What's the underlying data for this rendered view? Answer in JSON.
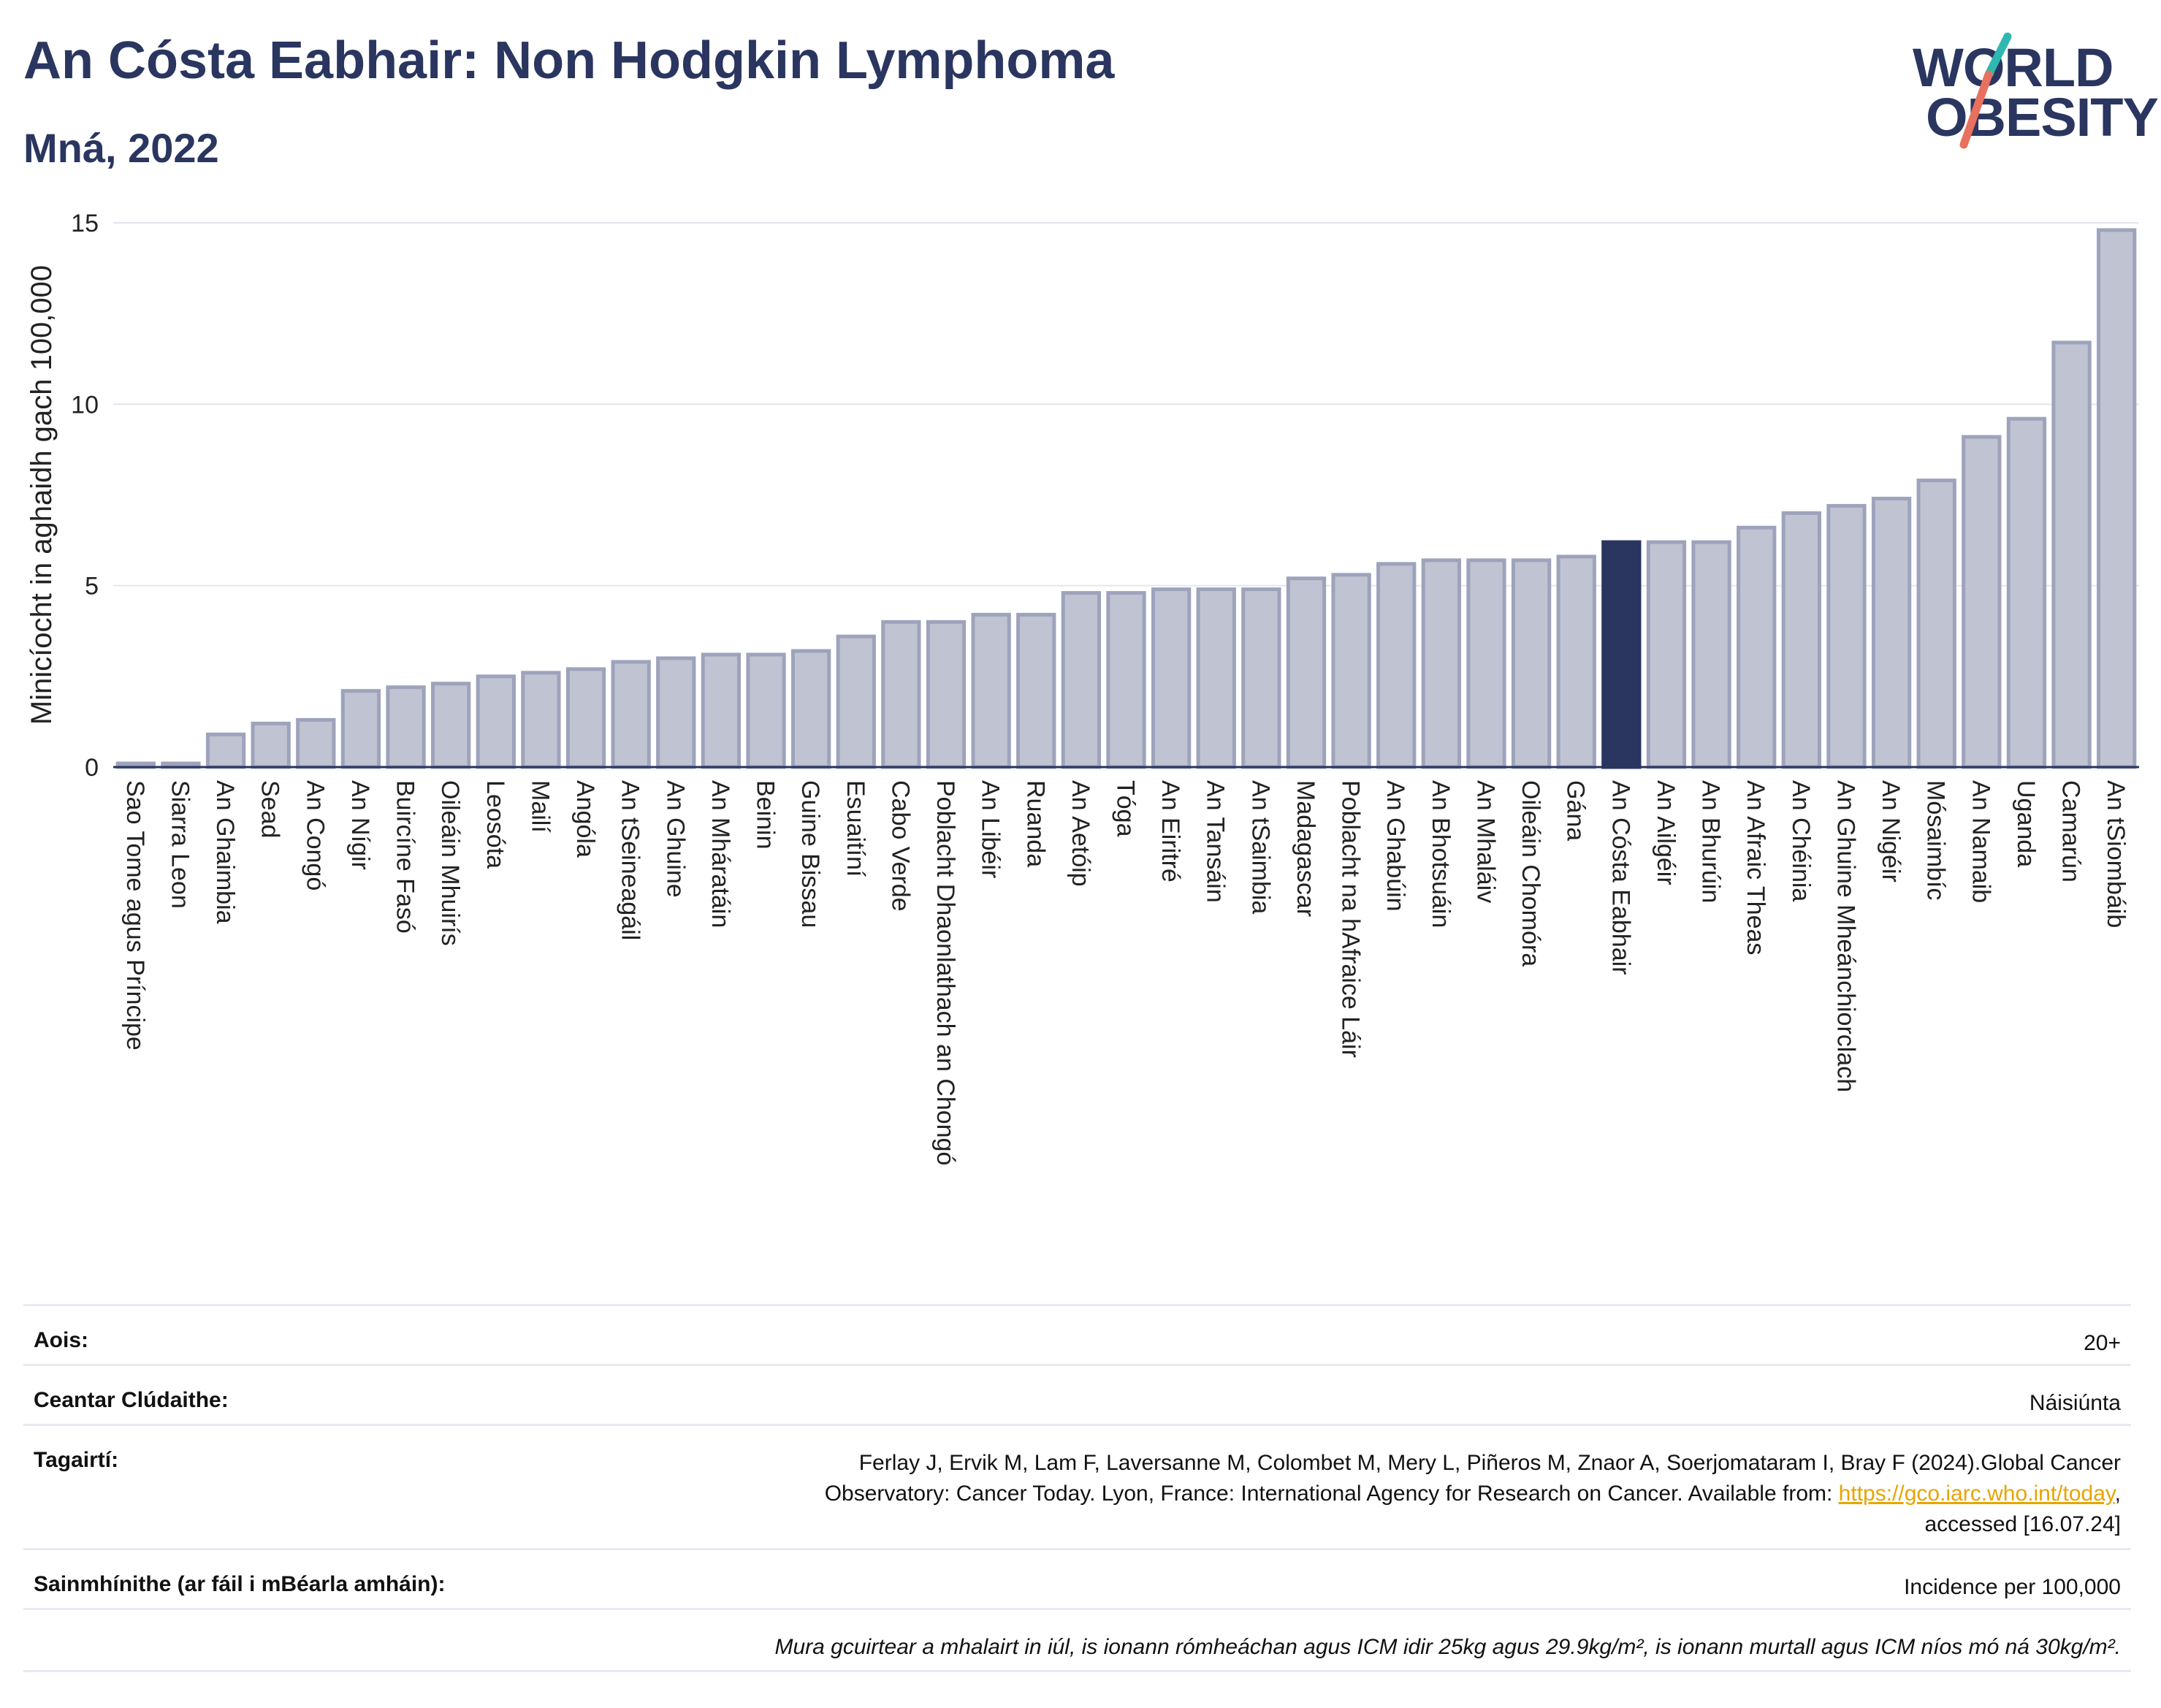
{
  "header": {
    "title": "An Cósta Eabhair: Non Hodgkin Lymphoma",
    "subtitle": "Mná, 2022"
  },
  "logo": {
    "line1": "WORLD",
    "line2": "OBESITY",
    "colors": {
      "text": "#2a3560",
      "teal": "#2fb8b0",
      "coral": "#e8705f"
    }
  },
  "chart_data": {
    "type": "bar",
    "ylabel": "Minicíocht in aghaidh gach 100,000",
    "ylim": [
      0,
      15
    ],
    "yticks": [
      0,
      5,
      10,
      15
    ],
    "grid": true,
    "highlight": "An Cósta Eabhair",
    "colors": {
      "bar": "#bfc3d2",
      "bar_border": "#9ea3bb",
      "highlight": "#2a3560",
      "grid": "#e3e5ee",
      "axis": "#2a3560"
    },
    "categories": [
      "Sao Tome agus Príncipe",
      "Siarra Leon",
      "An Ghaimbia",
      "Sead",
      "An Congó",
      "An Nígir",
      "Buircíne Fasó",
      "Oileáin Mhuirís",
      "Leosóta",
      "Mailí",
      "Angóla",
      "An tSeineagáil",
      "An Ghuine",
      "An Mháratáin",
      "Beinin",
      "Guine Bissau",
      "Esuaitíní",
      "Cabo Verde",
      "Poblacht Dhaonlathach an Chongó",
      "An Libéir",
      "Ruanda",
      "An Aetóip",
      "Tóga",
      "An Eiritré",
      "An Tansáin",
      "An tSaimbia",
      "Madagascar",
      "Poblacht na hAfraice Láir",
      "An Ghabúin",
      "An Bhotsuáin",
      "An Mhaláiv",
      "Oileáin Chomóra",
      "Gána",
      "An Cósta Eabhair",
      "An Ailgéir",
      "An Bhurúin",
      "An Afraic Theas",
      "An Chéinia",
      "An Ghuine Mheánchiorclach",
      "An Nigéir",
      "Mósaimbíc",
      "An Namaib",
      "Uganda",
      "Camarún",
      "An tSiombáib"
    ],
    "values": [
      0.1,
      0.1,
      0.9,
      1.2,
      1.3,
      2.1,
      2.2,
      2.3,
      2.5,
      2.6,
      2.7,
      2.9,
      3.0,
      3.1,
      3.1,
      3.2,
      3.6,
      4.0,
      4.0,
      4.2,
      4.2,
      4.8,
      4.8,
      4.9,
      4.9,
      4.9,
      5.2,
      5.3,
      5.6,
      5.7,
      5.7,
      5.7,
      5.8,
      6.2,
      6.2,
      6.2,
      6.6,
      7.0,
      7.2,
      7.4,
      7.9,
      9.1,
      9.6,
      11.7,
      14.8
    ]
  },
  "info": {
    "age_label": "Aois:",
    "age_value": "20+",
    "area_label": "Ceantar Clúdaithe:",
    "area_value": "Náisiúnta",
    "ref_label": "Tagairtí:",
    "ref_line1": "Ferlay J, Ervik M, Lam F, Laversanne M, Colombet M, Mery L, Piñeros M, Znaor A, Soerjomataram I, Bray F (2024).Global Cancer",
    "ref_line2_pre": "Observatory: Cancer Today. Lyon, France: International Agency for Research on Cancer. Available from: ",
    "ref_link": "https://gco.iarc.who.int/today",
    "ref_line2_post": ",",
    "ref_line3": "accessed [16.07.24]",
    "def_label": "Sainmhínithe (ar fáil i mBéarla amháin):",
    "def_value": "Incidence per 100,000",
    "note": "Mura gcuirtear a mhalairt in iúl, is ionann rómheáchan agus ICM idir 25kg agus 29.9kg/m², is ionann murtall agus ICM níos mó ná 30kg/m²."
  }
}
